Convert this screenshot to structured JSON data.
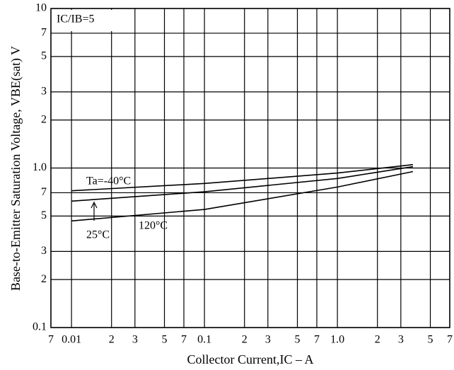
{
  "chart_data": {
    "type": "line",
    "x_label": "Collector Current,IC  –  A",
    "y_label": "Base-to-Emitter Saturation Voltage, VBE(sat)  V",
    "annotations": [
      "IC/IB=5"
    ],
    "log_x": true,
    "log_y": true,
    "grid": true,
    "xlim": [
      0.007,
      7
    ],
    "ylim": [
      0.1,
      10
    ],
    "xticks": [
      {
        "value": 0.007,
        "label": "7"
      },
      0.01,
      {
        "value": 0.02,
        "label": "2"
      },
      {
        "value": 0.03,
        "label": "3"
      },
      {
        "value": 0.05,
        "label": "5"
      },
      {
        "value": 0.07,
        "label": "7"
      },
      0.1,
      {
        "value": 0.2,
        "label": "2"
      },
      {
        "value": 0.3,
        "label": "3"
      },
      {
        "value": 0.5,
        "label": "5"
      },
      {
        "value": 0.7,
        "label": "7"
      },
      {
        "value": 1,
        "label": "1.0"
      },
      2,
      3,
      5,
      7
    ],
    "yticks": [
      {
        "value": 0.1,
        "label": "0.1"
      },
      {
        "value": 0.2,
        "label": "2"
      },
      {
        "value": 0.3,
        "label": "3"
      },
      {
        "value": 0.5,
        "label": "5"
      },
      {
        "value": 0.7,
        "label": "7"
      },
      {
        "value": 1,
        "label": "1.0"
      },
      2,
      3,
      5,
      7,
      10
    ],
    "x": [
      0.01,
      0.1,
      1.0,
      3.7
    ],
    "series": [
      {
        "name": "Ta=-40°C",
        "color": "#000000",
        "values": [
          0.72,
          0.8,
          0.93,
          1.05
        ]
      },
      {
        "name": "25°C",
        "color": "#000000",
        "values": [
          0.62,
          0.71,
          0.86,
          1.02
        ]
      },
      {
        "name": "120°C",
        "color": "#000000",
        "values": [
          0.466,
          0.55,
          0.76,
          0.95
        ]
      }
    ]
  }
}
